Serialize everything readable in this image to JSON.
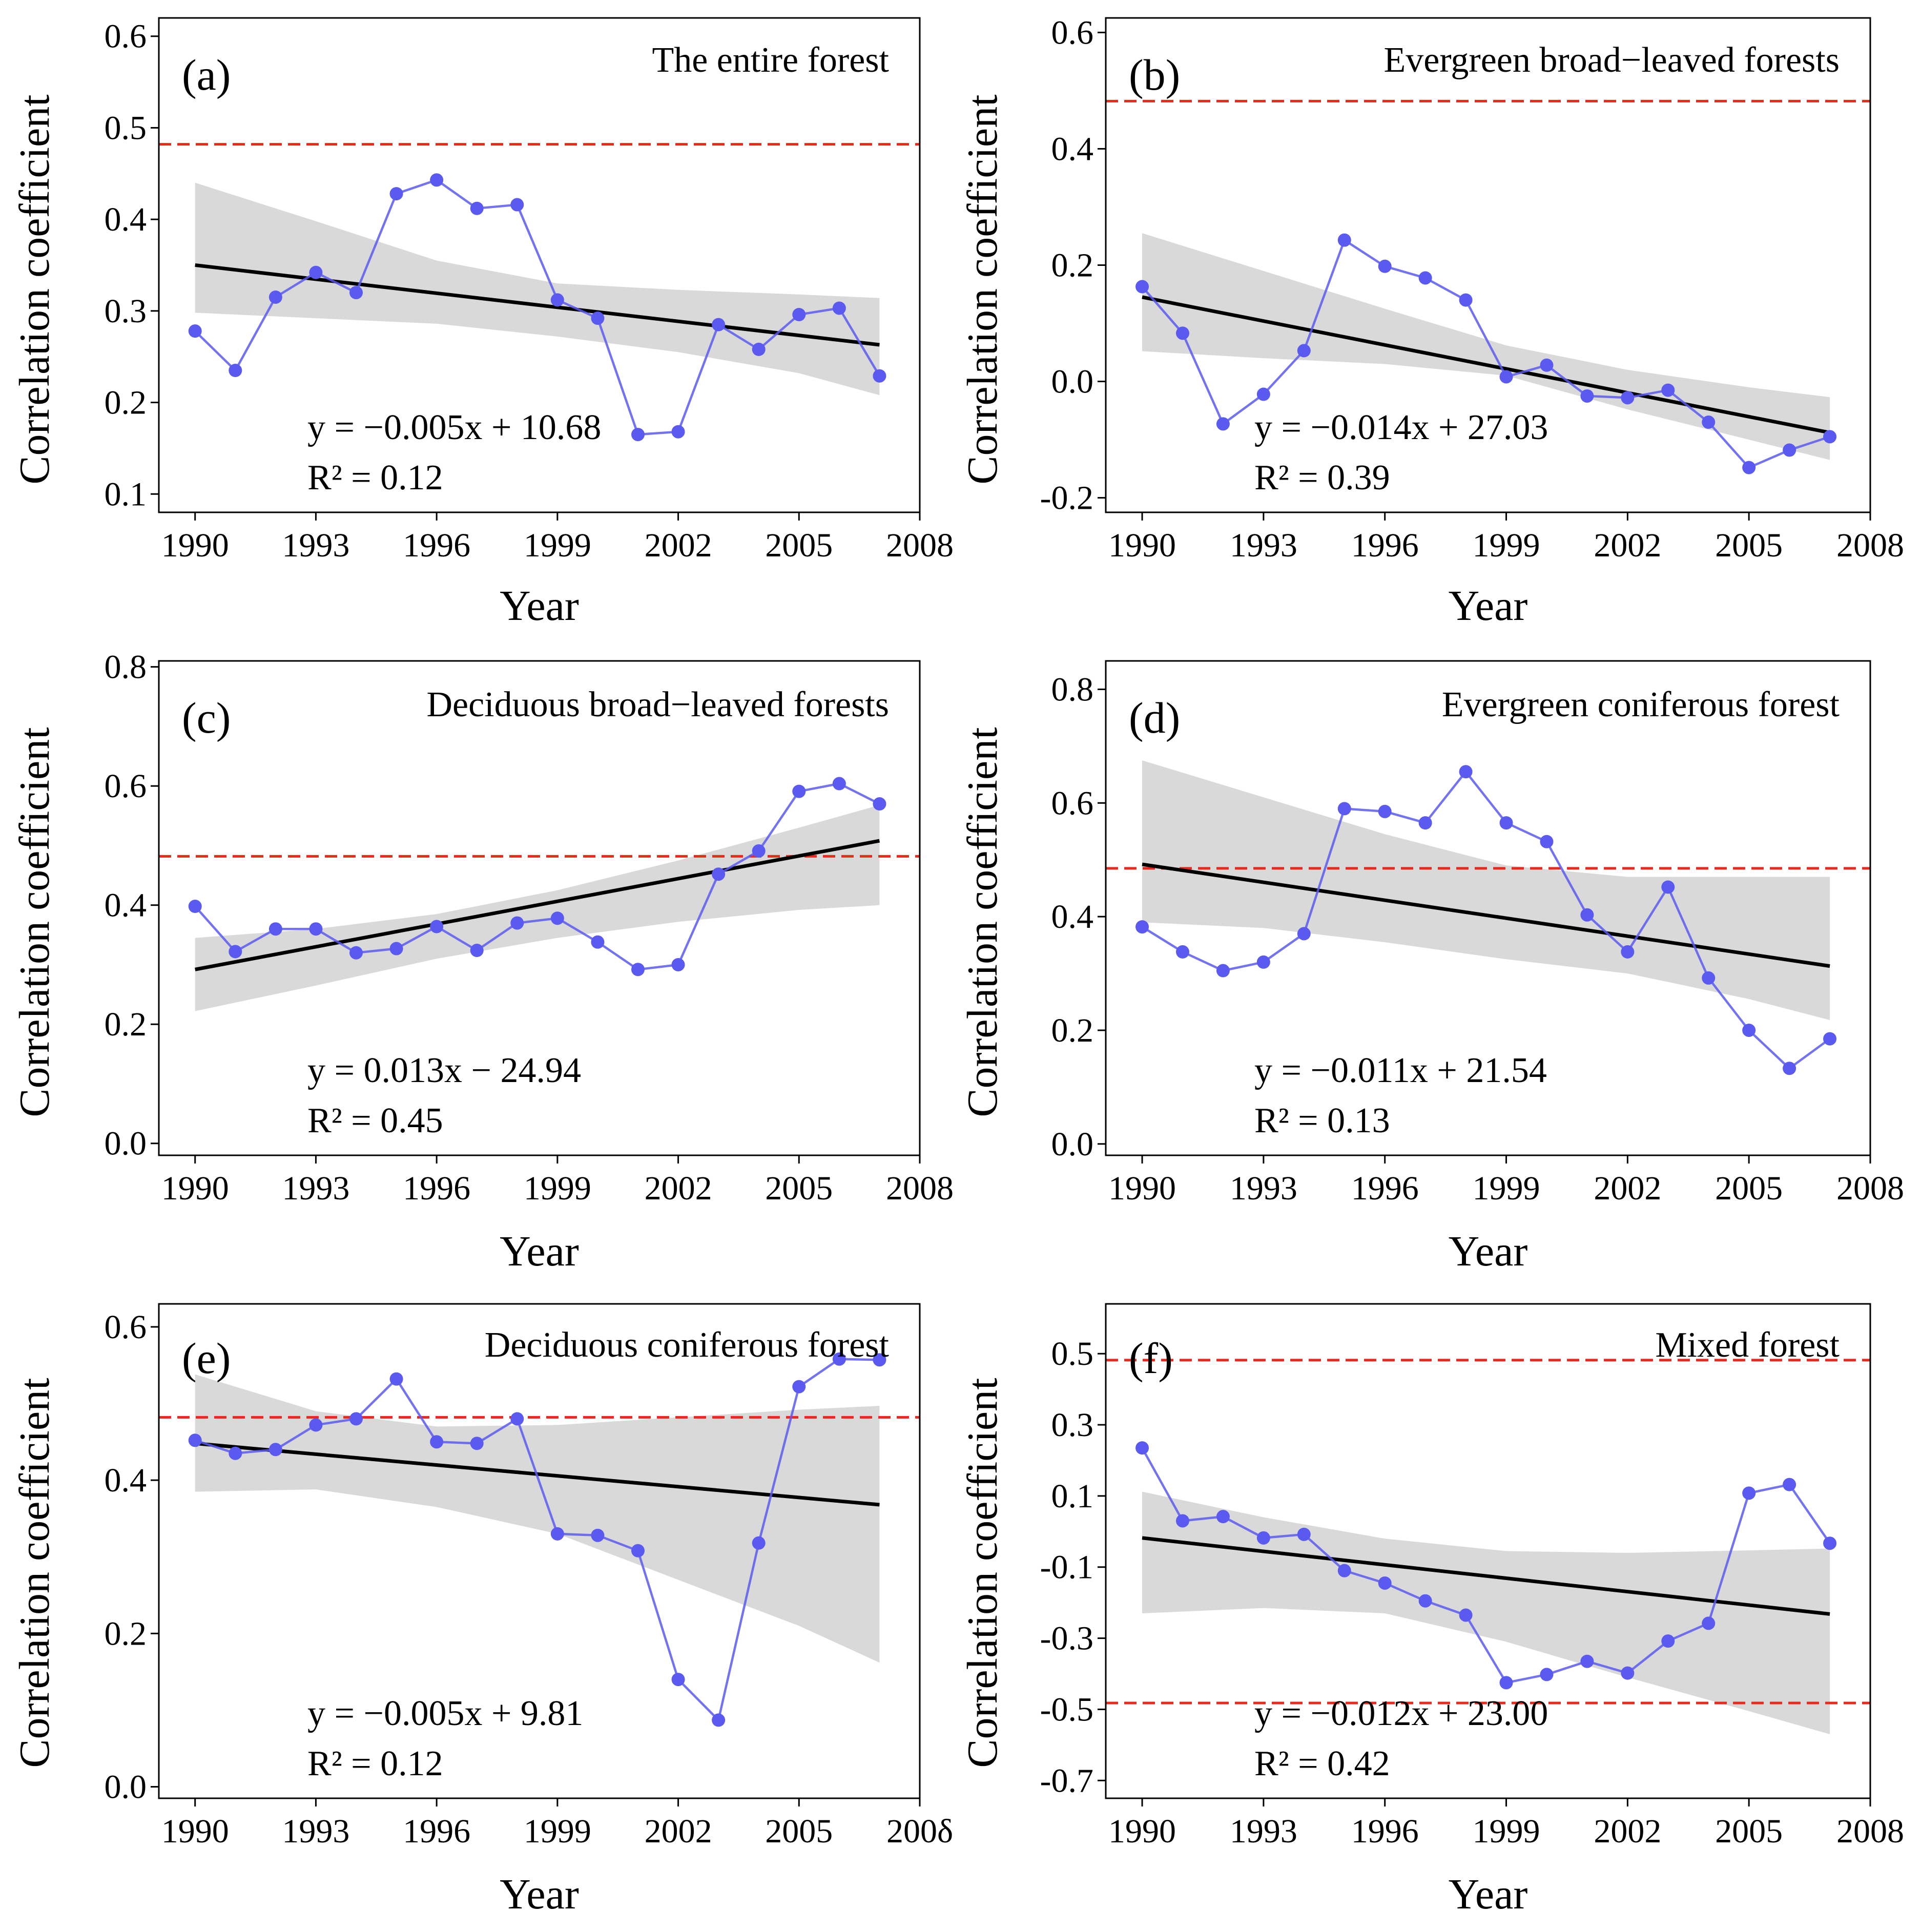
{
  "chart_data": [
    {
      "type": "line",
      "panel_label": "(a)",
      "title": "The entire forest",
      "xlabel": "Year",
      "ylabel": "Correlation  coefficient",
      "x": [
        1990,
        1991,
        1992,
        1993,
        1994,
        1995,
        1996,
        1997,
        1998,
        1999,
        2000,
        2001,
        2002,
        2003,
        2004,
        2005,
        2006,
        2007
      ],
      "values": [
        0.278,
        0.235,
        0.315,
        0.342,
        0.32,
        0.428,
        0.443,
        0.412,
        0.416,
        0.312,
        0.292,
        0.165,
        0.168,
        0.285,
        0.258,
        0.296,
        0.303,
        0.229
      ],
      "xticks": [
        1990,
        1993,
        1996,
        1999,
        2002,
        2005,
        2008
      ],
      "xtick_labels": [
        "1990",
        "1993",
        "1996",
        "1999",
        "2002",
        "2005",
        "2008"
      ],
      "xlim": [
        1989.1,
        2008.0
      ],
      "yticks": [
        0.1,
        0.2,
        0.3,
        0.4,
        0.5,
        0.6
      ],
      "ytick_labels": [
        "0.1",
        "0.2",
        "0.3",
        "0.4",
        "0.5",
        "0.6"
      ],
      "ylim": [
        0.08,
        0.62
      ],
      "threshold": [
        0.482
      ],
      "trend": {
        "start": 0.35,
        "end": 0.263
      },
      "ci_upper": [
        [
          1990,
          0.44
        ],
        [
          1993,
          0.398
        ],
        [
          1996,
          0.355
        ],
        [
          1999,
          0.33
        ],
        [
          2002,
          0.323
        ],
        [
          2005,
          0.318
        ],
        [
          2007,
          0.314
        ]
      ],
      "ci_lower": [
        [
          1990,
          0.298
        ],
        [
          1993,
          0.292
        ],
        [
          1996,
          0.286
        ],
        [
          1999,
          0.272
        ],
        [
          2002,
          0.255
        ],
        [
          2005,
          0.232
        ],
        [
          2007,
          0.208
        ]
      ],
      "equation": "y = −0.005x + 10.68",
      "r2": "R² = 0.12"
    },
    {
      "type": "line",
      "panel_label": "(b)",
      "title": "Evergreen broad−leaved forests",
      "xlabel": "Year",
      "ylabel": "Correlation  coefficient",
      "x": [
        1990,
        1991,
        1992,
        1993,
        1994,
        1995,
        1996,
        1997,
        1998,
        1999,
        2000,
        2001,
        2002,
        2003,
        2004,
        2005,
        2006,
        2007
      ],
      "values": [
        0.163,
        0.083,
        -0.073,
        -0.022,
        0.053,
        0.243,
        0.198,
        0.178,
        0.14,
        0.008,
        0.028,
        -0.025,
        -0.028,
        -0.015,
        -0.07,
        -0.148,
        -0.118,
        -0.095
      ],
      "xticks": [
        1990,
        1993,
        1996,
        1999,
        2002,
        2005,
        2008
      ],
      "xtick_labels": [
        "1990",
        "1993",
        "1996",
        "1999",
        "2002",
        "2005",
        "2008"
      ],
      "xlim": [
        1989.1,
        2008.0
      ],
      "yticks": [
        -0.2,
        0.0,
        0.2,
        0.4,
        0.6
      ],
      "ytick_labels": [
        "-0.2",
        "0.0",
        "0.2",
        "0.4",
        "0.6"
      ],
      "ylim": [
        -0.225,
        0.625
      ],
      "threshold": [
        0.482
      ],
      "trend": {
        "start": 0.145,
        "end": -0.088
      },
      "ci_upper": [
        [
          1990,
          0.255
        ],
        [
          1993,
          0.19
        ],
        [
          1996,
          0.125
        ],
        [
          1999,
          0.062
        ],
        [
          2002,
          0.02
        ],
        [
          2005,
          -0.01
        ],
        [
          2007,
          -0.027
        ]
      ],
      "ci_lower": [
        [
          1990,
          0.052
        ],
        [
          1993,
          0.04
        ],
        [
          1996,
          0.03
        ],
        [
          1999,
          0.01
        ],
        [
          2002,
          -0.048
        ],
        [
          2005,
          -0.1
        ],
        [
          2007,
          -0.135
        ]
      ],
      "equation": "y = −0.014x + 27.03",
      "r2": "R² = 0.39"
    },
    {
      "type": "line",
      "panel_label": "(c)",
      "title": "Deciduous broad−leaved forests",
      "xlabel": "Year",
      "ylabel": "Correlation  coefficient",
      "x": [
        1990,
        1991,
        1992,
        1993,
        1994,
        1995,
        1996,
        1997,
        1998,
        1999,
        2000,
        2001,
        2002,
        2003,
        2004,
        2005,
        2006,
        2007
      ],
      "values": [
        0.398,
        0.322,
        0.36,
        0.36,
        0.32,
        0.327,
        0.364,
        0.324,
        0.37,
        0.378,
        0.338,
        0.292,
        0.3,
        0.452,
        0.491,
        0.591,
        0.604,
        0.57
      ],
      "xticks": [
        1990,
        1993,
        1996,
        1999,
        2002,
        2005,
        2008
      ],
      "xtick_labels": [
        "1990",
        "1993",
        "1996",
        "1999",
        "2002",
        "2005",
        "2008"
      ],
      "xlim": [
        1989.1,
        2008.0
      ],
      "yticks": [
        0.0,
        0.2,
        0.4,
        0.6,
        0.8
      ],
      "ytick_labels": [
        "0.0",
        "0.2",
        "0.4",
        "0.6",
        "0.8"
      ],
      "ylim": [
        -0.02,
        0.81
      ],
      "threshold": [
        0.482
      ],
      "trend": {
        "start": 0.292,
        "end": 0.508
      },
      "ci_upper": [
        [
          1990,
          0.345
        ],
        [
          1993,
          0.36
        ],
        [
          1996,
          0.385
        ],
        [
          1999,
          0.425
        ],
        [
          2002,
          0.475
        ],
        [
          2005,
          0.53
        ],
        [
          2007,
          0.568
        ]
      ],
      "ci_lower": [
        [
          1990,
          0.222
        ],
        [
          1993,
          0.265
        ],
        [
          1996,
          0.31
        ],
        [
          1999,
          0.345
        ],
        [
          2002,
          0.372
        ],
        [
          2005,
          0.392
        ],
        [
          2007,
          0.4
        ]
      ],
      "equation": "y = 0.013x − 24.94",
      "r2": "R² = 0.45"
    },
    {
      "type": "line",
      "panel_label": "(d)",
      "title": "Evergreen coniferous forest",
      "xlabel": "Year",
      "ylabel": "Correlation  coefficient",
      "x": [
        1990,
        1991,
        1992,
        1993,
        1994,
        1995,
        1996,
        1997,
        1998,
        1999,
        2000,
        2001,
        2002,
        2003,
        2004,
        2005,
        2006,
        2007
      ],
      "values": [
        0.382,
        0.338,
        0.305,
        0.32,
        0.37,
        0.59,
        0.585,
        0.565,
        0.655,
        0.565,
        0.532,
        0.403,
        0.338,
        0.452,
        0.292,
        0.2,
        0.133,
        0.185
      ],
      "xticks": [
        1990,
        1993,
        1996,
        1999,
        2002,
        2005,
        2008
      ],
      "xtick_labels": [
        "1990",
        "1993",
        "1996",
        "1999",
        "2002",
        "2005",
        "2008"
      ],
      "xlim": [
        1989.1,
        2008.0
      ],
      "yticks": [
        0.0,
        0.2,
        0.4,
        0.6,
        0.8
      ],
      "ytick_labels": [
        "0.0",
        "0.2",
        "0.4",
        "0.6",
        "0.8"
      ],
      "ylim": [
        -0.02,
        0.85
      ],
      "threshold": [
        0.485
      ],
      "trend": {
        "start": 0.492,
        "end": 0.313
      },
      "ci_upper": [
        [
          1990,
          0.675
        ],
        [
          1993,
          0.61
        ],
        [
          1996,
          0.545
        ],
        [
          1999,
          0.49
        ],
        [
          2002,
          0.47
        ],
        [
          2005,
          0.47
        ],
        [
          2007,
          0.47
        ]
      ],
      "ci_lower": [
        [
          1990,
          0.39
        ],
        [
          1993,
          0.38
        ],
        [
          1996,
          0.355
        ],
        [
          1999,
          0.325
        ],
        [
          2002,
          0.3
        ],
        [
          2005,
          0.255
        ],
        [
          2007,
          0.218
        ]
      ],
      "equation": "y = −0.011x + 21.54",
      "r2": "R² = 0.13"
    },
    {
      "type": "line",
      "panel_label": "(e)",
      "title": "Deciduous coniferous forest",
      "xlabel": "Year",
      "ylabel": "Correlation  coefficient",
      "x": [
        1990,
        1991,
        1992,
        1993,
        1994,
        1995,
        1996,
        1997,
        1998,
        1999,
        2000,
        2001,
        2002,
        2003,
        2004,
        2005,
        2006,
        2007
      ],
      "values": [
        0.452,
        0.435,
        0.44,
        0.472,
        0.48,
        0.532,
        0.45,
        0.448,
        0.48,
        0.33,
        0.328,
        0.308,
        0.14,
        0.087,
        0.318,
        0.522,
        0.558,
        0.557
      ],
      "xticks": [
        1990,
        1993,
        1996,
        1999,
        2002,
        2005,
        2008
      ],
      "xtick_labels": [
        "1990",
        "1993",
        "1996",
        "1999",
        "2002",
        "2005",
        "200δ"
      ],
      "xlim": [
        1989.1,
        2008.0
      ],
      "yticks": [
        0.0,
        0.2,
        0.4,
        0.6
      ],
      "ytick_labels": [
        "0.0",
        "0.2",
        "0.4",
        "0.6"
      ],
      "ylim": [
        -0.015,
        0.63
      ],
      "threshold": [
        0.482
      ],
      "trend": {
        "start": 0.448,
        "end": 0.368
      },
      "ci_upper": [
        [
          1990,
          0.538
        ],
        [
          1993,
          0.49
        ],
        [
          1996,
          0.47
        ],
        [
          1999,
          0.472
        ],
        [
          2002,
          0.482
        ],
        [
          2005,
          0.492
        ],
        [
          2007,
          0.497
        ]
      ],
      "ci_lower": [
        [
          1990,
          0.385
        ],
        [
          1993,
          0.388
        ],
        [
          1996,
          0.365
        ],
        [
          1999,
          0.33
        ],
        [
          2002,
          0.27
        ],
        [
          2005,
          0.21
        ],
        [
          2007,
          0.162
        ]
      ],
      "equation": "y = −0.005x + 9.81",
      "r2": "R² = 0.12"
    },
    {
      "type": "line",
      "panel_label": "(f)",
      "title": "Mixed forest",
      "xlabel": "Year",
      "ylabel": "Correlation  coefficient",
      "x": [
        1990,
        1991,
        1992,
        1993,
        1994,
        1995,
        1996,
        1997,
        1998,
        1999,
        2000,
        2001,
        2002,
        2003,
        2004,
        2005,
        2006,
        2007
      ],
      "values": [
        0.235,
        0.03,
        0.042,
        -0.018,
        -0.008,
        -0.11,
        -0.145,
        -0.195,
        -0.235,
        -0.425,
        -0.402,
        -0.365,
        -0.398,
        -0.308,
        -0.258,
        0.108,
        0.132,
        -0.033
      ],
      "xticks": [
        1990,
        1993,
        1996,
        1999,
        2002,
        2005,
        2008
      ],
      "xtick_labels": [
        "1990",
        "1993",
        "1996",
        "1999",
        "2002",
        "2005",
        "2008"
      ],
      "xlim": [
        1989.1,
        2008.0
      ],
      "yticks": [
        -0.7,
        -0.5,
        -0.3,
        -0.1,
        0.1,
        0.3,
        0.5
      ],
      "ytick_labels": [
        "-0.7",
        "-0.5",
        "-0.3",
        "-0.1",
        "0.1",
        "0.3",
        "0.5"
      ],
      "ylim": [
        -0.75,
        0.64
      ],
      "threshold": [
        0.482,
        -0.482
      ],
      "trend": {
        "start": -0.018,
        "end": -0.232
      },
      "ci_upper": [
        [
          1990,
          0.112
        ],
        [
          1993,
          0.04
        ],
        [
          1996,
          -0.02
        ],
        [
          1999,
          -0.055
        ],
        [
          2002,
          -0.06
        ],
        [
          2005,
          -0.053
        ],
        [
          2007,
          -0.048
        ]
      ],
      "ci_lower": [
        [
          1990,
          -0.23
        ],
        [
          1993,
          -0.215
        ],
        [
          1996,
          -0.23
        ],
        [
          1999,
          -0.31
        ],
        [
          2002,
          -0.41
        ],
        [
          2005,
          -0.505
        ],
        [
          2007,
          -0.57
        ]
      ],
      "equation": "y = −0.012x + 23.00",
      "r2": "R² = 0.42"
    }
  ],
  "colors": {
    "series": "#5a5af0",
    "trend": "#000000",
    "band": "#d9d9d9",
    "threshold": "#e8291c"
  }
}
